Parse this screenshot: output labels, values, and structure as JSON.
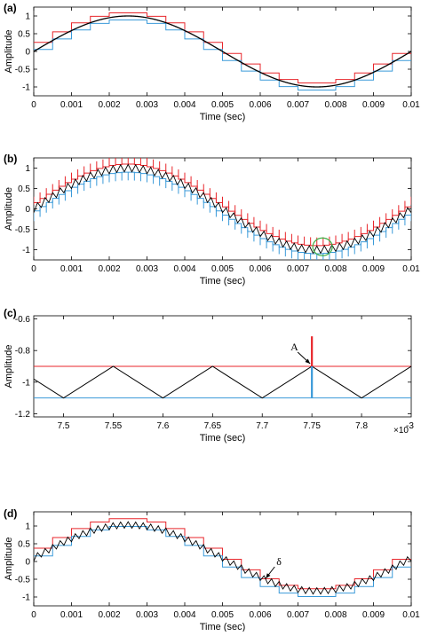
{
  "chart_data": [
    {
      "panel": "(a)",
      "type": "line",
      "xlabel": "Time (sec)",
      "ylabel": "Amplitude",
      "xlim": [
        0,
        0.01
      ],
      "ylim": [
        -1.25,
        1.25
      ],
      "x_ticks": [
        "0",
        "0.001",
        "0.002",
        "0.003",
        "0.004",
        "0.005",
        "0.006",
        "0.007",
        "0.008",
        "0.009",
        "0.01"
      ],
      "y_ticks": [
        "1",
        "0.5",
        "0",
        "-0.5",
        "-1"
      ],
      "grid": false,
      "series": [
        {
          "color": "#e8262b",
          "style": "staircase",
          "steps": 20,
          "offset": 0.1,
          "amplitude": 1
        },
        {
          "color": "#3a9ad9",
          "style": "staircase",
          "steps": 20,
          "offset": -0.1,
          "amplitude": 1
        },
        {
          "color": "#000000",
          "style": "sine",
          "amplitude": 1,
          "period": 0.01
        }
      ]
    },
    {
      "panel": "(b)",
      "type": "line",
      "xlabel": "Time (sec)",
      "ylabel": "Amplitude",
      "xlim": [
        0,
        0.01
      ],
      "ylim": [
        -1.25,
        1.25
      ],
      "x_ticks": [
        "0",
        "0.001",
        "0.002",
        "0.003",
        "0.004",
        "0.005",
        "0.006",
        "0.007",
        "0.008",
        "0.009",
        "0.01"
      ],
      "y_ticks": [
        "1",
        "0.5",
        "0",
        "-0.5",
        "-1"
      ],
      "grid": false,
      "series": [
        {
          "color": "#e8262b",
          "style": "staircase-spikes",
          "steps": 60,
          "offset": 0.1,
          "amplitude": 1
        },
        {
          "color": "#3a9ad9",
          "style": "staircase-spikes",
          "steps": 60,
          "offset": -0.1,
          "amplitude": 1
        },
        {
          "color": "#000000",
          "style": "sine-ripple",
          "amplitude": 1,
          "period": 0.01,
          "ripple_amplitude": 0.09,
          "ripple_cycles": 50
        }
      ],
      "highlight": {
        "color": "#3cb043",
        "shape": "circle",
        "x": 0.00765,
        "y": -0.93
      }
    },
    {
      "panel": "(c)",
      "type": "line",
      "xlabel": "Time (sec)",
      "ylabel": "Amplitude",
      "x_multiplier": "×10",
      "x_multiplier_exp": "-3",
      "xlim": [
        7.47,
        7.85
      ],
      "ylim": [
        -1.22,
        -0.58
      ],
      "x_ticks": [
        "7.5",
        "7.55",
        "7.6",
        "7.65",
        "7.7",
        "7.75",
        "7.8"
      ],
      "y_ticks": [
        "-0.6",
        "-0.8",
        "-1",
        "-1.2"
      ],
      "grid": false,
      "series": [
        {
          "color": "#e8262b",
          "style": "level",
          "y": -0.9
        },
        {
          "color": "#3a9ad9",
          "style": "level",
          "y": -1.1
        },
        {
          "color": "#000000",
          "style": "triangle",
          "peaks_x": [
            7.55,
            7.65,
            7.75,
            7.85
          ],
          "troughs_x": [
            7.5,
            7.6,
            7.7,
            7.8
          ],
          "peak_y": -0.9,
          "trough_y": -1.1
        },
        {
          "color": "#e8262b",
          "style": "vertical",
          "x": 7.75,
          "y_from": -0.9,
          "y_to": -0.71
        },
        {
          "color": "#3a9ad9",
          "style": "vertical",
          "x": 7.75,
          "y_from": -0.9,
          "y_to": -1.1
        }
      ],
      "annotation": {
        "text": "A",
        "x": 7.75,
        "y": -0.9
      }
    },
    {
      "panel": "(d)",
      "type": "line",
      "xlabel": "Time (sec)",
      "ylabel": "Amplitude",
      "xlim": [
        0,
        0.01
      ],
      "ylim": [
        -1.25,
        1.4
      ],
      "x_ticks": [
        "0",
        "0.001",
        "0.002",
        "0.003",
        "0.004",
        "0.005",
        "0.006",
        "0.007",
        "0.008",
        "0.009",
        "0.01"
      ],
      "y_ticks": [
        "1",
        "0.5",
        "0",
        "-0.5",
        "-1"
      ],
      "grid": false,
      "series": [
        {
          "color": "#e8262b",
          "style": "staircase",
          "steps": 20,
          "offset": 0.22,
          "amplitude": 1
        },
        {
          "color": "#3a9ad9",
          "style": "staircase",
          "steps": 20,
          "offset": 0.0,
          "amplitude": 1
        },
        {
          "color": "#000000",
          "style": "sine-ripple",
          "amplitude": 0.93,
          "period": 0.01,
          "center": 0.1,
          "ripple_amplitude": 0.09,
          "ripple_cycles": 50
        }
      ],
      "annotation": {
        "text": "δ",
        "x": 0.0061,
        "y": -0.55
      }
    }
  ]
}
